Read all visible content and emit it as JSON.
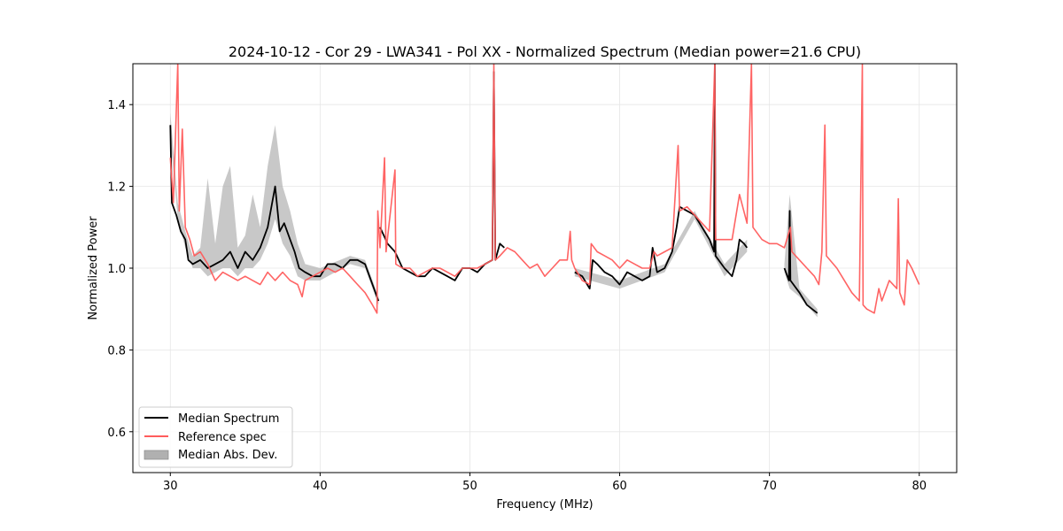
{
  "chart_data": {
    "type": "line",
    "title": "2024-10-12 - Cor 29 - LWA341 - Pol XX - Normalized Spectrum (Median power=21.6 CPU)",
    "xlabel": "Frequency (MHz)",
    "ylabel": "Normalized Power",
    "xlim": [
      27.5,
      82.5
    ],
    "ylim": [
      0.5,
      1.5
    ],
    "xticks": [
      30,
      40,
      50,
      60,
      70,
      80
    ],
    "yticks": [
      0.6,
      0.8,
      1.0,
      1.2,
      1.4
    ],
    "xtick_labels": [
      "30",
      "40",
      "50",
      "60",
      "70",
      "80"
    ],
    "ytick_labels": [
      "0.6",
      "0.8",
      "1.0",
      "1.2",
      "1.4"
    ],
    "grid": true,
    "legend_position": "lower-left",
    "legend": [
      "Median Spectrum",
      "Reference spec",
      "Median Abs. Dev."
    ],
    "colors": {
      "median": "#000000",
      "reference": "#ff5c5c",
      "mad": "#b0b0b0"
    },
    "series": [
      {
        "name": "Median Spectrum",
        "segments": [
          [
            [
              30.0,
              1.35
            ],
            [
              30.1,
              1.16
            ],
            [
              30.4,
              1.13
            ],
            [
              30.7,
              1.09
            ],
            [
              31.0,
              1.07
            ],
            [
              31.2,
              1.02
            ],
            [
              31.5,
              1.01
            ],
            [
              32.0,
              1.02
            ],
            [
              32.5,
              1.0
            ],
            [
              33.0,
              1.01
            ],
            [
              33.5,
              1.02
            ],
            [
              34.0,
              1.04
            ],
            [
              34.5,
              1.0
            ],
            [
              35.0,
              1.04
            ],
            [
              35.5,
              1.02
            ],
            [
              36.0,
              1.05
            ],
            [
              36.5,
              1.1
            ],
            [
              37.0,
              1.2
            ],
            [
              37.3,
              1.09
            ],
            [
              37.6,
              1.11
            ],
            [
              38.0,
              1.07
            ],
            [
              38.3,
              1.04
            ],
            [
              38.6,
              1.0
            ],
            [
              39.0,
              0.99
            ],
            [
              39.5,
              0.98
            ],
            [
              40.0,
              0.98
            ],
            [
              40.5,
              1.01
            ],
            [
              41.0,
              1.01
            ],
            [
              41.5,
              1.0
            ],
            [
              42.0,
              1.02
            ],
            [
              42.5,
              1.02
            ],
            [
              43.0,
              1.01
            ],
            [
              43.5,
              0.96
            ],
            [
              43.9,
              0.92
            ]
          ],
          [
            [
              44.0,
              1.1
            ],
            [
              44.5,
              1.06
            ],
            [
              45.0,
              1.04
            ],
            [
              45.5,
              1.0
            ],
            [
              46.0,
              0.99
            ],
            [
              46.5,
              0.98
            ],
            [
              47.0,
              0.98
            ],
            [
              47.5,
              1.0
            ],
            [
              48.0,
              0.99
            ],
            [
              48.5,
              0.98
            ],
            [
              49.0,
              0.97
            ],
            [
              49.5,
              1.0
            ],
            [
              50.0,
              1.0
            ],
            [
              50.5,
              0.99
            ],
            [
              51.0,
              1.01
            ],
            [
              51.5,
              1.02
            ],
            [
              51.6,
              1.48
            ],
            [
              51.7,
              1.02
            ],
            [
              52.0,
              1.06
            ],
            [
              52.3,
              1.05
            ]
          ],
          [
            [
              57.0,
              0.99
            ],
            [
              57.5,
              0.98
            ],
            [
              58.0,
              0.95
            ],
            [
              58.2,
              1.02
            ],
            [
              58.5,
              1.01
            ],
            [
              59.0,
              0.99
            ],
            [
              59.5,
              0.98
            ],
            [
              60.0,
              0.96
            ],
            [
              60.5,
              0.99
            ],
            [
              61.0,
              0.98
            ],
            [
              61.5,
              0.97
            ],
            [
              62.0,
              0.98
            ],
            [
              62.2,
              1.05
            ],
            [
              62.5,
              0.99
            ],
            [
              63.0,
              1.0
            ],
            [
              63.5,
              1.04
            ],
            [
              63.8,
              1.1
            ],
            [
              64.0,
              1.15
            ],
            [
              64.5,
              1.14
            ],
            [
              65.0,
              1.13
            ],
            [
              65.5,
              1.1
            ],
            [
              66.0,
              1.07
            ],
            [
              66.3,
              1.04
            ],
            [
              66.35,
              1.5
            ],
            [
              66.4,
              1.03
            ],
            [
              67.0,
              1.0
            ],
            [
              67.5,
              0.98
            ],
            [
              67.8,
              1.02
            ],
            [
              68.0,
              1.07
            ],
            [
              68.3,
              1.06
            ],
            [
              68.5,
              1.05
            ]
          ],
          [
            [
              71.0,
              1.0
            ],
            [
              71.3,
              0.97
            ],
            [
              71.35,
              1.14
            ],
            [
              71.4,
              0.97
            ],
            [
              72.0,
              0.94
            ],
            [
              72.5,
              0.91
            ],
            [
              73.2,
              0.89
            ]
          ]
        ]
      },
      {
        "name": "Reference spec",
        "segments": [
          [
            [
              30.0,
              1.27
            ],
            [
              30.2,
              1.16
            ],
            [
              30.5,
              1.5
            ],
            [
              30.6,
              1.14
            ],
            [
              30.8,
              1.34
            ],
            [
              31.0,
              1.1
            ],
            [
              31.3,
              1.07
            ],
            [
              31.6,
              1.03
            ],
            [
              32.0,
              1.04
            ],
            [
              32.5,
              1.01
            ],
            [
              33.0,
              0.97
            ],
            [
              33.5,
              0.99
            ],
            [
              34.0,
              0.98
            ],
            [
              34.5,
              0.97
            ],
            [
              35.0,
              0.98
            ],
            [
              35.5,
              0.97
            ],
            [
              36.0,
              0.96
            ],
            [
              36.5,
              0.99
            ],
            [
              37.0,
              0.97
            ],
            [
              37.5,
              0.99
            ],
            [
              38.0,
              0.97
            ],
            [
              38.5,
              0.96
            ],
            [
              38.8,
              0.93
            ],
            [
              39.0,
              0.97
            ],
            [
              39.5,
              0.98
            ],
            [
              40.0,
              0.99
            ],
            [
              40.5,
              1.0
            ],
            [
              41.0,
              0.99
            ],
            [
              41.5,
              1.0
            ],
            [
              42.0,
              0.98
            ],
            [
              42.5,
              0.96
            ],
            [
              43.0,
              0.94
            ],
            [
              43.5,
              0.91
            ],
            [
              43.8,
              0.89
            ],
            [
              43.85,
              1.14
            ],
            [
              44.0,
              1.05
            ],
            [
              44.3,
              1.27
            ],
            [
              44.4,
              1.04
            ],
            [
              45.0,
              1.24
            ],
            [
              45.05,
              1.01
            ],
            [
              45.5,
              1.0
            ],
            [
              46.0,
              1.0
            ],
            [
              46.5,
              0.98
            ],
            [
              47.0,
              0.99
            ],
            [
              47.5,
              1.0
            ],
            [
              48.0,
              1.0
            ],
            [
              48.5,
              0.99
            ],
            [
              49.0,
              0.98
            ],
            [
              49.5,
              1.0
            ],
            [
              50.0,
              1.0
            ],
            [
              50.5,
              1.0
            ],
            [
              51.0,
              1.01
            ],
            [
              51.5,
              1.02
            ],
            [
              51.6,
              1.5
            ],
            [
              51.7,
              1.02
            ],
            [
              52.0,
              1.03
            ],
            [
              52.5,
              1.05
            ],
            [
              53.0,
              1.04
            ],
            [
              53.5,
              1.02
            ],
            [
              54.0,
              1.0
            ],
            [
              54.5,
              1.01
            ],
            [
              55.0,
              0.98
            ],
            [
              55.5,
              1.0
            ],
            [
              56.0,
              1.02
            ],
            [
              56.5,
              1.02
            ],
            [
              56.7,
              1.09
            ],
            [
              56.8,
              1.02
            ],
            [
              57.0,
              1.0
            ],
            [
              57.5,
              0.97
            ],
            [
              58.0,
              0.96
            ],
            [
              58.1,
              1.06
            ],
            [
              58.5,
              1.04
            ],
            [
              59.0,
              1.03
            ],
            [
              59.5,
              1.02
            ],
            [
              60.0,
              1.0
            ],
            [
              60.5,
              1.02
            ],
            [
              61.0,
              1.01
            ],
            [
              61.5,
              1.0
            ],
            [
              62.0,
              1.0
            ],
            [
              62.3,
              1.04
            ],
            [
              62.5,
              1.03
            ],
            [
              63.0,
              1.04
            ],
            [
              63.5,
              1.05
            ],
            [
              63.9,
              1.3
            ],
            [
              64.0,
              1.14
            ],
            [
              64.5,
              1.15
            ],
            [
              65.0,
              1.13
            ],
            [
              65.5,
              1.11
            ],
            [
              66.0,
              1.09
            ],
            [
              66.35,
              1.5
            ],
            [
              66.4,
              1.07
            ],
            [
              67.0,
              1.07
            ],
            [
              67.5,
              1.07
            ],
            [
              68.0,
              1.18
            ],
            [
              68.5,
              1.11
            ],
            [
              68.8,
              1.5
            ],
            [
              68.9,
              1.1
            ],
            [
              69.5,
              1.07
            ],
            [
              70.0,
              1.06
            ],
            [
              70.5,
              1.06
            ],
            [
              71.0,
              1.05
            ],
            [
              71.4,
              1.1
            ],
            [
              71.5,
              1.04
            ],
            [
              72.0,
              1.02
            ],
            [
              72.5,
              1.0
            ],
            [
              73.0,
              0.98
            ],
            [
              73.3,
              0.96
            ],
            [
              73.5,
              1.04
            ],
            [
              73.7,
              1.35
            ],
            [
              73.8,
              1.03
            ],
            [
              74.5,
              1.0
            ],
            [
              75.0,
              0.97
            ],
            [
              75.5,
              0.94
            ],
            [
              76.0,
              0.92
            ],
            [
              76.2,
              1.5
            ],
            [
              76.25,
              0.91
            ],
            [
              76.5,
              0.9
            ],
            [
              77.0,
              0.89
            ],
            [
              77.3,
              0.95
            ],
            [
              77.5,
              0.92
            ],
            [
              78.0,
              0.97
            ],
            [
              78.5,
              0.95
            ],
            [
              78.6,
              1.17
            ],
            [
              78.7,
              0.94
            ],
            [
              79.0,
              0.91
            ],
            [
              79.2,
              1.02
            ],
            [
              79.5,
              1.0
            ],
            [
              80.0,
              0.96
            ]
          ]
        ]
      }
    ],
    "mad_band": {
      "name": "Median Abs. Dev.",
      "segments": [
        [
          [
            30.0,
            1.32,
            1.38
          ],
          [
            30.5,
            1.12,
            1.16
          ],
          [
            31.0,
            1.05,
            1.09
          ],
          [
            31.5,
            1.0,
            1.03
          ],
          [
            32.0,
            1.0,
            1.05
          ],
          [
            32.5,
            0.98,
            1.22
          ],
          [
            33.0,
            0.99,
            1.06
          ],
          [
            33.5,
            1.0,
            1.2
          ],
          [
            34.0,
            1.0,
            1.25
          ],
          [
            34.5,
            0.98,
            1.05
          ],
          [
            35.0,
            1.0,
            1.08
          ],
          [
            35.5,
            1.0,
            1.18
          ],
          [
            36.0,
            1.02,
            1.1
          ],
          [
            36.5,
            1.06,
            1.25
          ],
          [
            37.0,
            1.12,
            1.35
          ],
          [
            37.5,
            1.06,
            1.2
          ],
          [
            38.0,
            1.03,
            1.14
          ],
          [
            38.5,
            0.98,
            1.06
          ],
          [
            39.0,
            0.97,
            1.01
          ],
          [
            40.0,
            0.97,
            1.0
          ],
          [
            42.0,
            1.01,
            1.03
          ],
          [
            43.0,
            1.0,
            1.02
          ],
          [
            43.9,
            0.91,
            0.93
          ]
        ],
        [
          [
            57.0,
            0.98,
            1.0
          ],
          [
            60.0,
            0.95,
            0.97
          ],
          [
            63.0,
            0.99,
            1.01
          ],
          [
            65.0,
            1.12,
            1.14
          ],
          [
            67.0,
            0.98,
            1.01
          ],
          [
            68.5,
            1.04,
            1.07
          ]
        ],
        [
          [
            71.0,
            0.99,
            1.01
          ],
          [
            71.35,
            0.95,
            1.18
          ],
          [
            72.0,
            0.93,
            0.95
          ],
          [
            73.2,
            0.88,
            0.9
          ]
        ]
      ]
    }
  }
}
